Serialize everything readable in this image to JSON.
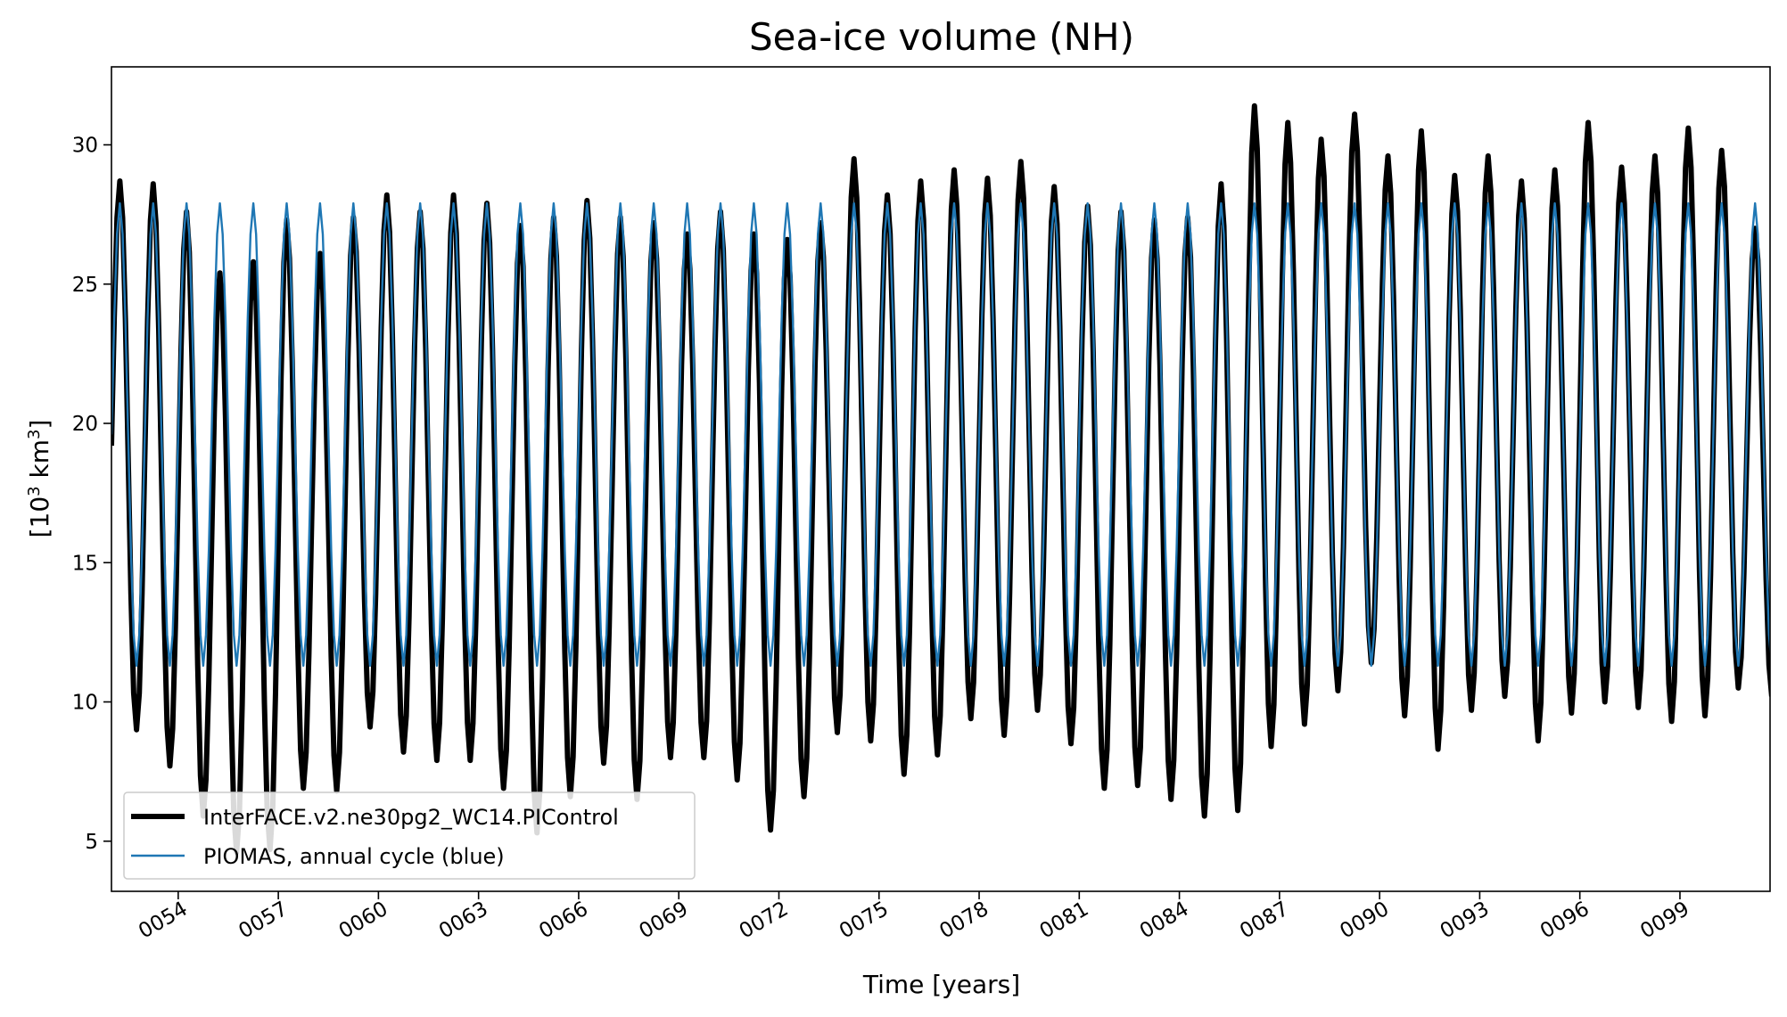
{
  "chart_data": {
    "type": "line",
    "title": "Sea-ice volume (NH)",
    "xlabel": "Time [years]",
    "ylabel": "[10",
    "ylabel_sup1": "3",
    "ylabel_mid": " km",
    "ylabel_sup2": "3",
    "ylabel_end": "]",
    "xlim": [
      52.0,
      101.7
    ],
    "ylim": [
      3.2,
      32.8
    ],
    "yticks": [
      5,
      10,
      15,
      20,
      25,
      30
    ],
    "xticks": [
      {
        "value": 54,
        "label": "0054"
      },
      {
        "value": 57,
        "label": "0057"
      },
      {
        "value": 60,
        "label": "0060"
      },
      {
        "value": 63,
        "label": "0063"
      },
      {
        "value": 66,
        "label": "0066"
      },
      {
        "value": 69,
        "label": "0069"
      },
      {
        "value": 72,
        "label": "0072"
      },
      {
        "value": 75,
        "label": "0075"
      },
      {
        "value": 78,
        "label": "0078"
      },
      {
        "value": 81,
        "label": "0081"
      },
      {
        "value": 84,
        "label": "0084"
      },
      {
        "value": 87,
        "label": "0087"
      },
      {
        "value": 90,
        "label": "0090"
      },
      {
        "value": 93,
        "label": "0093"
      },
      {
        "value": 96,
        "label": "0096"
      },
      {
        "value": 99,
        "label": "0099"
      }
    ],
    "series": [
      {
        "name": "InterFACE.v2.ne30pg2_WC14.PIControl",
        "color": "#000000",
        "description": "monthly model sea-ice volume, annual maxima and minima per year",
        "years": [
          52,
          53,
          54,
          55,
          56,
          57,
          58,
          59,
          60,
          61,
          62,
          63,
          64,
          65,
          66,
          67,
          68,
          69,
          70,
          71,
          72,
          73,
          74,
          75,
          76,
          77,
          78,
          79,
          80,
          81,
          82,
          83,
          84,
          85,
          86,
          87,
          88,
          89,
          90,
          91,
          92,
          93,
          94,
          95,
          96,
          97,
          98,
          99,
          100,
          101
        ],
        "annual_max": [
          28.7,
          28.6,
          27.6,
          25.4,
          25.8,
          27.3,
          26.1,
          27.4,
          28.2,
          27.6,
          28.2,
          27.9,
          27.1,
          27.4,
          28.0,
          27.4,
          27.2,
          26.8,
          27.6,
          26.8,
          26.6,
          27.2,
          29.5,
          28.2,
          28.7,
          29.1,
          28.8,
          29.4,
          28.5,
          27.8,
          27.6,
          27.3,
          27.4,
          28.6,
          31.4,
          30.8,
          30.2,
          31.1,
          29.6,
          30.5,
          28.9,
          29.6,
          28.7,
          29.1,
          30.8,
          29.2,
          29.6,
          30.6,
          29.8,
          27.0
        ],
        "annual_min": [
          9.0,
          7.7,
          5.9,
          4.6,
          4.7,
          6.9,
          6.8,
          9.1,
          8.2,
          7.9,
          7.9,
          6.9,
          5.3,
          6.6,
          7.8,
          6.5,
          8.0,
          8.0,
          7.2,
          5.4,
          6.6,
          8.9,
          8.6,
          7.4,
          8.1,
          9.4,
          8.8,
          9.7,
          8.5,
          6.9,
          7.0,
          6.5,
          5.9,
          6.1,
          8.4,
          9.2,
          10.4,
          11.4,
          9.5,
          8.3,
          9.7,
          10.2,
          8.6,
          9.6,
          10.0,
          9.8,
          9.3,
          9.5,
          10.5,
          10.2
        ],
        "start_value": 19.2
      },
      {
        "name": "PIOMAS, annual cycle (blue)",
        "color": "#1f77b4",
        "description": "climatological annual cycle repeated every year",
        "annual_max": 27.9,
        "annual_min": 11.3
      }
    ],
    "legend": {
      "location": "lower-left",
      "entries": [
        "InterFACE.v2.ne30pg2_WC14.PIControl",
        "PIOMAS, annual cycle (blue)"
      ]
    }
  }
}
